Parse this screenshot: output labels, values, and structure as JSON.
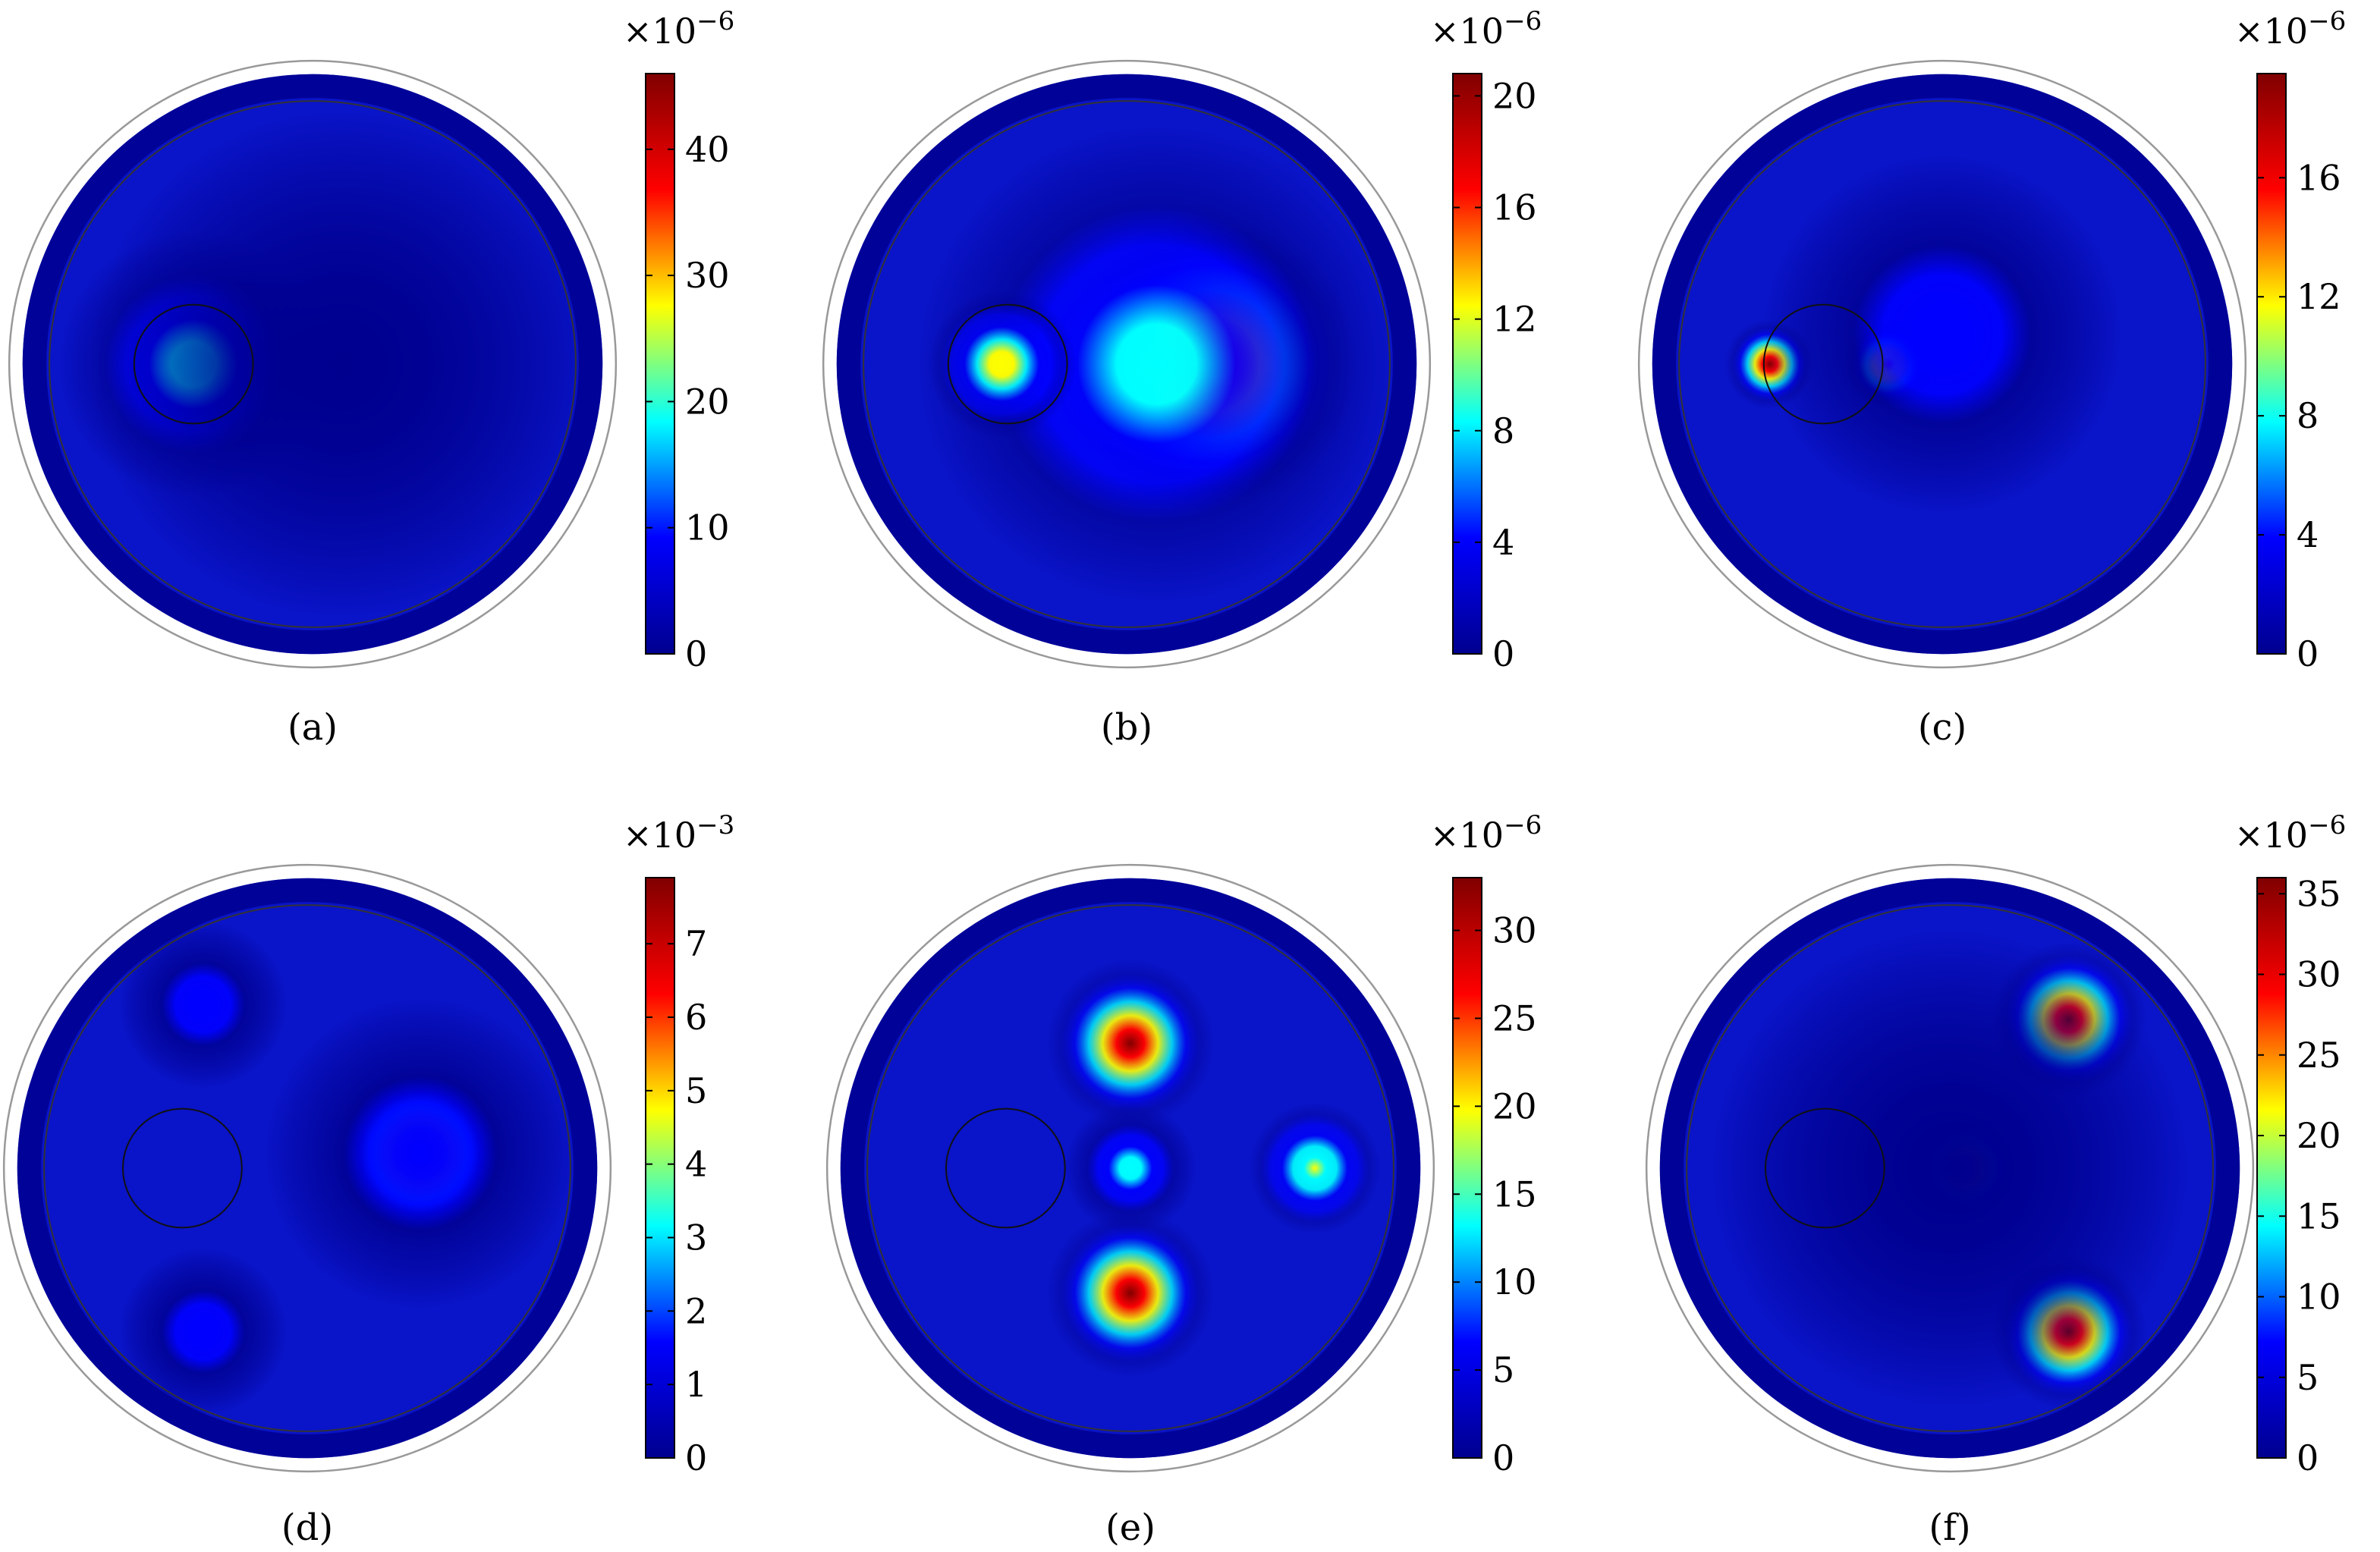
{
  "chart_data": [
    {
      "type": "heatmap",
      "panel_label": "(a)",
      "colorbar": {
        "multiplier": "×10",
        "exponent": "−6",
        "ticks": [
          "0",
          "10",
          "20",
          "30",
          "40"
        ],
        "max": 46
      },
      "hotspots": [
        {
          "x": -0.4,
          "y": 0.0,
          "r": 0.22,
          "v": 1.0
        },
        {
          "x": -0.4,
          "y": 0.0,
          "r": 0.45,
          "v": 0.55
        },
        {
          "x": 0.1,
          "y": 0.0,
          "r": 0.85,
          "v": 0.12
        }
      ],
      "inclusion": {
        "x": -0.4,
        "y": 0.0,
        "r": 0.2
      }
    },
    {
      "type": "heatmap",
      "panel_label": "(b)",
      "colorbar": {
        "multiplier": "×10",
        "exponent": "−6",
        "ticks": [
          "0",
          "4",
          "8",
          "12",
          "16",
          "20"
        ],
        "max": 20.8
      },
      "hotspots": [
        {
          "x": 0.28,
          "y": 0.0,
          "r": 0.5,
          "v": 1.0
        },
        {
          "x": 0.1,
          "y": 0.0,
          "r": 0.8,
          "v": 0.55
        },
        {
          "x": -0.42,
          "y": 0.0,
          "r": 0.25,
          "v": 0.75
        }
      ],
      "inclusion": {
        "x": -0.4,
        "y": 0.0,
        "r": 0.2
      }
    },
    {
      "type": "heatmap",
      "panel_label": "(c)",
      "colorbar": {
        "multiplier": "×10",
        "exponent": "−6",
        "ticks": [
          "0",
          "4",
          "8",
          "12",
          "16"
        ],
        "max": 19.5
      },
      "hotspots": [
        {
          "x": -0.58,
          "y": 0.0,
          "r": 0.15,
          "v": 1.0
        },
        {
          "x": -0.18,
          "y": 0.0,
          "r": 0.15,
          "v": 0.95
        },
        {
          "x": 0.0,
          "y": 0.1,
          "r": 0.6,
          "v": 0.3
        }
      ],
      "inclusion": {
        "x": -0.4,
        "y": 0.0,
        "r": 0.2
      }
    },
    {
      "type": "heatmap",
      "panel_label": "(d)",
      "colorbar": {
        "multiplier": "×10",
        "exponent": "−3",
        "ticks": [
          "0",
          "1",
          "2",
          "3",
          "4",
          "5",
          "6",
          "7"
        ],
        "max": 7.9
      },
      "hotspots": [
        {
          "x": 0.38,
          "y": 0.05,
          "r": 0.3,
          "v": 1.0
        },
        {
          "x": 0.38,
          "y": 0.05,
          "r": 0.52,
          "v": 0.35
        },
        {
          "x": -0.35,
          "y": 0.55,
          "r": 0.28,
          "v": 0.3
        },
        {
          "x": -0.35,
          "y": -0.55,
          "r": 0.28,
          "v": 0.3
        }
      ],
      "inclusion": {
        "x": -0.42,
        "y": 0.0,
        "r": 0.2
      }
    },
    {
      "type": "heatmap",
      "panel_label": "(e)",
      "colorbar": {
        "multiplier": "×10",
        "exponent": "−6",
        "ticks": [
          "0",
          "5",
          "10",
          "15",
          "20",
          "25",
          "30"
        ],
        "max": 33
      },
      "hotspots": [
        {
          "x": 0.0,
          "y": 0.42,
          "r": 0.28,
          "v": 1.0
        },
        {
          "x": 0.0,
          "y": -0.42,
          "r": 0.28,
          "v": 1.0
        },
        {
          "x": 0.0,
          "y": 0.0,
          "r": 0.22,
          "v": 0.55
        },
        {
          "x": 0.62,
          "y": 0.0,
          "r": 0.22,
          "v": 0.7
        }
      ],
      "inclusion": {
        "x": -0.42,
        "y": 0.0,
        "r": 0.2
      }
    },
    {
      "type": "heatmap",
      "panel_label": "(f)",
      "colorbar": {
        "multiplier": "×10",
        "exponent": "−6",
        "ticks": [
          "0",
          "5",
          "10",
          "15",
          "20",
          "25",
          "30",
          "35"
        ],
        "max": 36
      },
      "hotspots": [
        {
          "x": 0.4,
          "y": 0.5,
          "r": 0.26,
          "v": 1.0
        },
        {
          "x": 0.4,
          "y": -0.55,
          "r": 0.26,
          "v": 1.0
        },
        {
          "x": 0.05,
          "y": 0.0,
          "r": 0.18,
          "v": 1.0
        },
        {
          "x": 0.0,
          "y": 0.0,
          "r": 0.8,
          "v": 0.18
        }
      ],
      "inclusion": {
        "x": -0.42,
        "y": 0.0,
        "r": 0.2
      }
    }
  ],
  "colors": {
    "jet": [
      "#00008f",
      "#0000ff",
      "#00ffff",
      "#ffff00",
      "#ff0000",
      "#800000"
    ],
    "outer_ring": "#999999",
    "inner_line": "#333333"
  }
}
